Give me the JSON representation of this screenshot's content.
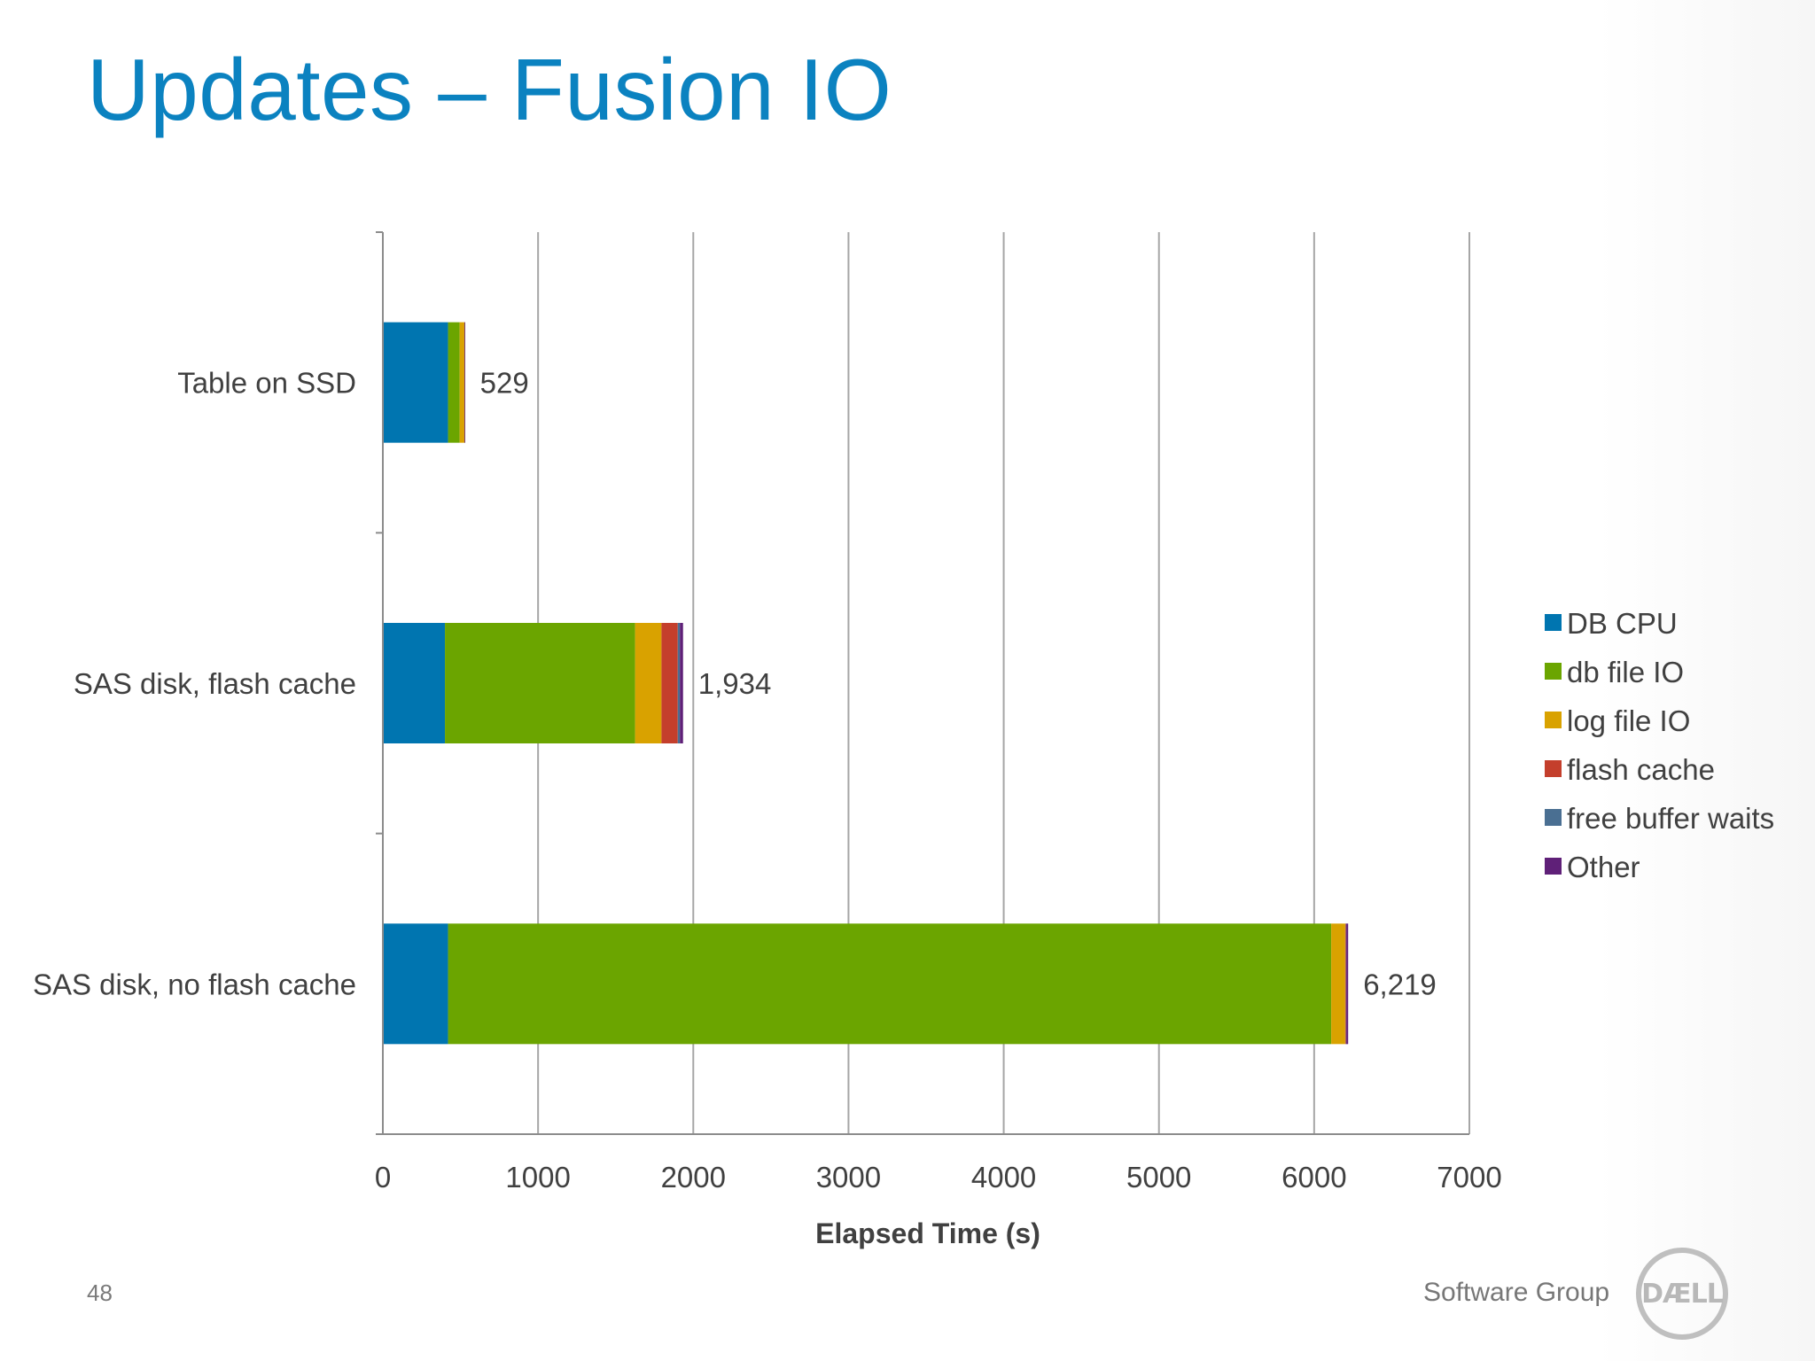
{
  "slide": {
    "title": "Updates – Fusion IO",
    "page_number": "48",
    "footer_text": "Software Group",
    "logo_text": "DÆLL"
  },
  "colors": {
    "title": "#0b82c0",
    "DB CPU": "#0075b0",
    "db file IO": "#6ba500",
    "log file IO": "#d9a200",
    "flash cache": "#c43f2c",
    "free buffer waits": "#4a6f92",
    "Other": "#5f2078"
  },
  "chart_data": {
    "type": "bar",
    "orientation": "horizontal",
    "stacked": true,
    "title": "",
    "xlabel": "Elapsed Time (s)",
    "ylabel": "",
    "xlim": [
      0,
      7000
    ],
    "x_ticks": [
      "0",
      "1000",
      "2000",
      "3000",
      "4000",
      "5000",
      "6000",
      "7000"
    ],
    "grid": true,
    "legend_position": "right",
    "categories": [
      "Table on SSD",
      "SAS disk, flash cache",
      "SAS disk, no flash cache"
    ],
    "series": [
      {
        "name": "DB CPU",
        "values": [
          420,
          400,
          420
        ]
      },
      {
        "name": "db file IO",
        "values": [
          75,
          1225,
          5690
        ]
      },
      {
        "name": "log file IO",
        "values": [
          30,
          170,
          90
        ]
      },
      {
        "name": "flash cache",
        "values": [
          2,
          105,
          5
        ]
      },
      {
        "name": "free buffer waits",
        "values": [
          1,
          14,
          2
        ]
      },
      {
        "name": "Other",
        "values": [
          1,
          20,
          12
        ]
      }
    ],
    "totals": [
      529,
      1934,
      6219
    ],
    "total_labels": [
      "529",
      "1,934",
      "6,219"
    ]
  }
}
